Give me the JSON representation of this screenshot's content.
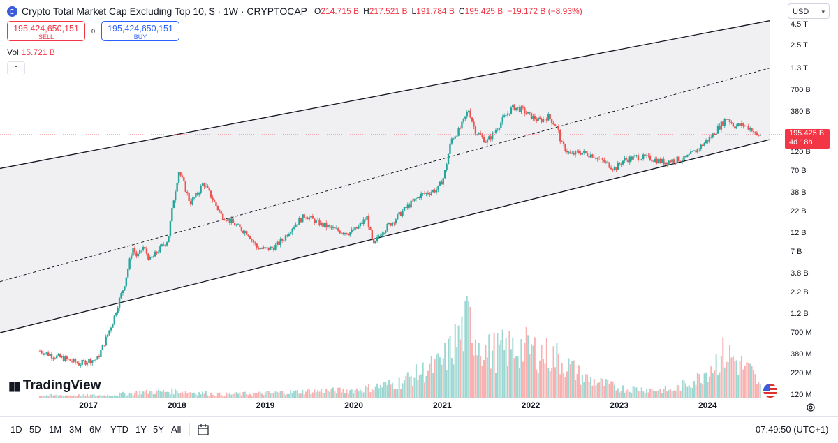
{
  "header": {
    "title": "Crypto Total Market Cap Excluding Top 10, $ · 1W · CRYPTOCAP",
    "ohlc": [
      {
        "key": "O",
        "value": "214.715 B"
      },
      {
        "key": "H",
        "value": "217.521 B"
      },
      {
        "key": "L",
        "value": "191.784 B"
      },
      {
        "key": "C",
        "value": "195.425 B"
      }
    ],
    "change": "−19.172 B (−8.93%)"
  },
  "trade": {
    "sell_price": "195,424,650,151",
    "sell_label": "SELL",
    "spread": "0",
    "buy_price": "195,424,650,151",
    "buy_label": "BUY"
  },
  "volume": {
    "label": "Vol",
    "value": "15.721 B"
  },
  "currency": "USD",
  "price_axis_ticks": [
    "4.5 T",
    "2.5 T",
    "1.3 T",
    "700 B",
    "380 B",
    "120 B",
    "70 B",
    "38 B",
    "22 B",
    "12 B",
    "7 B",
    "3.8 B",
    "2.2 B",
    "1.2 B",
    "700 M",
    "380 M",
    "220 M",
    "120 M"
  ],
  "last_price": {
    "value": "195.425 B",
    "countdown": "4d 18h"
  },
  "time_axis_ticks": [
    "2017",
    "2018",
    "2019",
    "2020",
    "2021",
    "2022",
    "2023",
    "2024"
  ],
  "ranges": [
    "1D",
    "5D",
    "1M",
    "3M",
    "6M",
    "YTD",
    "1Y",
    "5Y",
    "All"
  ],
  "clock": "07:49:50 (UTC+1)",
  "branding": "TradingView",
  "colors": {
    "up": "#26a69a",
    "down": "#ef5350",
    "channel_fill": "#f0f0f3",
    "last_price": "#f23645"
  },
  "chart_data": {
    "type": "candlestick",
    "title": "Crypto Total Market Cap Excluding Top 10, $ · 1W · CRYPTOCAP",
    "x_unit": "year",
    "y_scale": "log",
    "y_unit": "USD",
    "ylim": [
      120000000,
      4500000000000
    ],
    "price_path": [
      [
        2016.45,
        420000000
      ],
      [
        2016.55,
        380000000
      ],
      [
        2016.75,
        330000000
      ],
      [
        2016.9,
        290000000
      ],
      [
        2017.0,
        320000000
      ],
      [
        2017.1,
        330000000
      ],
      [
        2017.2,
        600000000
      ],
      [
        2017.28,
        1000000000
      ],
      [
        2017.35,
        1800000000
      ],
      [
        2017.4,
        2600000000
      ],
      [
        2017.45,
        4500000000
      ],
      [
        2017.5,
        8000000000
      ],
      [
        2017.55,
        6000000000
      ],
      [
        2017.62,
        8000000000
      ],
      [
        2017.7,
        5500000000
      ],
      [
        2017.8,
        7500000000
      ],
      [
        2017.9,
        10000000000
      ],
      [
        2017.96,
        30000000000
      ],
      [
        2018.02,
        70000000000
      ],
      [
        2018.08,
        48000000000
      ],
      [
        2018.15,
        28000000000
      ],
      [
        2018.22,
        35000000000
      ],
      [
        2018.3,
        50000000000
      ],
      [
        2018.38,
        35000000000
      ],
      [
        2018.5,
        20000000000
      ],
      [
        2018.6,
        17000000000
      ],
      [
        2018.7,
        14000000000
      ],
      [
        2018.8,
        12000000000
      ],
      [
        2018.9,
        8000000000
      ],
      [
        2019.0,
        7500000000
      ],
      [
        2019.1,
        8000000000
      ],
      [
        2019.2,
        10000000000
      ],
      [
        2019.3,
        14000000000
      ],
      [
        2019.45,
        20000000000
      ],
      [
        2019.55,
        17000000000
      ],
      [
        2019.65,
        15000000000
      ],
      [
        2019.8,
        13000000000
      ],
      [
        2019.95,
        12000000000
      ],
      [
        2020.05,
        14000000000
      ],
      [
        2020.15,
        19000000000
      ],
      [
        2020.22,
        8000000000
      ],
      [
        2020.3,
        12000000000
      ],
      [
        2020.45,
        17000000000
      ],
      [
        2020.6,
        25000000000
      ],
      [
        2020.75,
        35000000000
      ],
      [
        2020.85,
        38000000000
      ],
      [
        2020.95,
        42000000000
      ],
      [
        2021.02,
        60000000000
      ],
      [
        2021.1,
        170000000000
      ],
      [
        2021.2,
        230000000000
      ],
      [
        2021.3,
        400000000000
      ],
      [
        2021.37,
        220000000000
      ],
      [
        2021.5,
        160000000000
      ],
      [
        2021.6,
        220000000000
      ],
      [
        2021.7,
        320000000000
      ],
      [
        2021.8,
        430000000000
      ],
      [
        2021.9,
        400000000000
      ],
      [
        2022.0,
        330000000000
      ],
      [
        2022.1,
        290000000000
      ],
      [
        2022.2,
        330000000000
      ],
      [
        2022.3,
        240000000000
      ],
      [
        2022.35,
        150000000000
      ],
      [
        2022.45,
        110000000000
      ],
      [
        2022.55,
        120000000000
      ],
      [
        2022.7,
        110000000000
      ],
      [
        2022.85,
        88000000000
      ],
      [
        2022.95,
        75000000000
      ],
      [
        2023.05,
        95000000000
      ],
      [
        2023.2,
        105000000000
      ],
      [
        2023.35,
        100000000000
      ],
      [
        2023.5,
        90000000000
      ],
      [
        2023.6,
        95000000000
      ],
      [
        2023.75,
        100000000000
      ],
      [
        2023.85,
        120000000000
      ],
      [
        2023.95,
        150000000000
      ],
      [
        2024.05,
        190000000000
      ],
      [
        2024.15,
        260000000000
      ],
      [
        2024.22,
        320000000000
      ],
      [
        2024.3,
        250000000000
      ],
      [
        2024.4,
        260000000000
      ],
      [
        2024.5,
        230000000000
      ],
      [
        2024.55,
        190000000000
      ],
      [
        2024.6,
        195425000000
      ]
    ],
    "volume_y_scale": "relative",
    "volume_path": [
      [
        2016.45,
        0.03
      ],
      [
        2017.2,
        0.03
      ],
      [
        2017.6,
        0.06
      ],
      [
        2018.0,
        0.07
      ],
      [
        2018.5,
        0.04
      ],
      [
        2019.0,
        0.05
      ],
      [
        2019.5,
        0.07
      ],
      [
        2020.0,
        0.08
      ],
      [
        2020.5,
        0.15
      ],
      [
        2021.0,
        0.35
      ],
      [
        2021.3,
        0.75
      ],
      [
        2021.5,
        0.45
      ],
      [
        2021.9,
        0.5
      ],
      [
        2022.3,
        0.4
      ],
      [
        2022.6,
        0.2
      ],
      [
        2023.0,
        0.1
      ],
      [
        2023.6,
        0.08
      ],
      [
        2023.9,
        0.2
      ],
      [
        2024.2,
        0.45
      ],
      [
        2024.5,
        0.25
      ],
      [
        2024.6,
        0.1
      ]
    ],
    "channel": {
      "upper": [
        [
          2016.0,
          75000000000
        ],
        [
          2024.7,
          5000000000000
        ]
      ],
      "middle": [
        [
          2016.0,
          3000000000
        ],
        [
          2024.7,
          1300000000000
        ]
      ],
      "lower": [
        [
          2016.0,
          700000000
        ],
        [
          2024.7,
          170000000000
        ]
      ]
    }
  }
}
